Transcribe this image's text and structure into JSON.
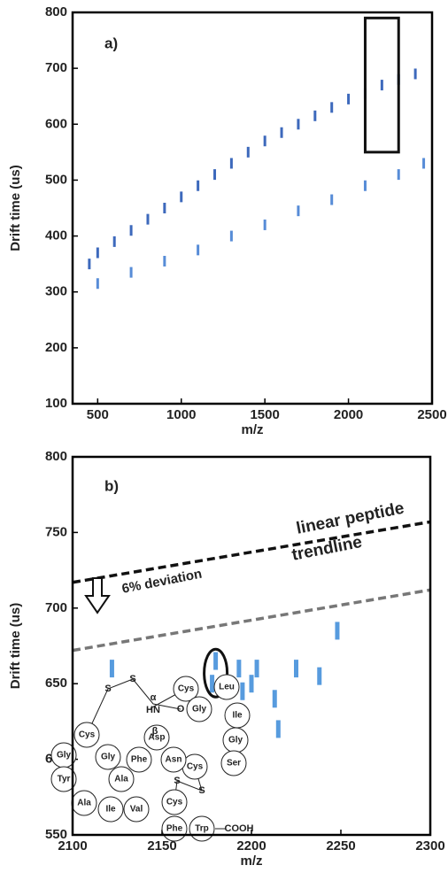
{
  "chart_data": [
    {
      "type": "scatter",
      "annotations": [
        "a)"
      ],
      "x_label": "m/z",
      "y_label": "Drift time (us)",
      "xlim": [
        350,
        2500
      ],
      "xticks": [
        500,
        1000,
        1500,
        2000,
        2500
      ],
      "ylim": [
        100,
        800
      ],
      "yticks": [
        100,
        200,
        300,
        400,
        500,
        600,
        700,
        800
      ],
      "series": [
        {
          "color": "#1b4fb0",
          "x": [
            450,
            500,
            600,
            700,
            800,
            900,
            1000,
            1100,
            1200,
            1300,
            1400,
            1500,
            1600,
            1700,
            1800,
            1900,
            2000,
            2100,
            2200,
            2300,
            2400
          ],
          "y": [
            350,
            370,
            390,
            410,
            430,
            450,
            470,
            490,
            510,
            530,
            550,
            570,
            585,
            600,
            615,
            630,
            645,
            655,
            670,
            680,
            690
          ]
        },
        {
          "color": "#3a78d0",
          "x": [
            500,
            700,
            900,
            1100,
            1300,
            1500,
            1700,
            1900,
            2100,
            2300,
            2450
          ],
          "y": [
            315,
            335,
            355,
            375,
            400,
            420,
            445,
            465,
            490,
            510,
            530
          ]
        }
      ],
      "highlight_box": {
        "x": [
          2100,
          2300
        ],
        "y": [
          550,
          790
        ]
      }
    },
    {
      "type": "scatter",
      "annotations": [
        "b)",
        "linear peptide",
        "trendline",
        "6% deviation"
      ],
      "x_label": "m/z",
      "y_label": "Drift time (us)",
      "xlim": [
        2100,
        2300
      ],
      "xticks": [
        2100,
        2150,
        2200,
        2250,
        2300
      ],
      "ylim": [
        550,
        800
      ],
      "yticks": [
        550,
        600,
        650,
        700,
        750,
        800
      ],
      "series": [
        {
          "color": "#3a8ad8",
          "x": [
            2122,
            2180,
            2178,
            2193,
            2195,
            2200,
            2203,
            2213,
            2215,
            2225,
            2238,
            2248
          ],
          "y": [
            660,
            665,
            650,
            660,
            645,
            650,
            660,
            640,
            620,
            660,
            655,
            685
          ]
        }
      ],
      "lines": [
        {
          "color": "#111111",
          "x": [
            2100,
            2300
          ],
          "y": [
            717,
            757
          ]
        },
        {
          "color": "#777777",
          "x": [
            2100,
            2300
          ],
          "y": [
            672,
            712
          ]
        }
      ],
      "highlight_ellipse": {
        "x": 2180,
        "y": 657
      },
      "structure_labels": [
        "Cys",
        "Leu",
        "Gly",
        "Ile",
        "Gly",
        "Ser",
        "Cys",
        "Asn",
        "Asp",
        "Phe",
        "Gly",
        "Ala",
        "Cys",
        "Gly",
        "Tyr",
        "Ala",
        "Ile",
        "Val",
        "Cys",
        "Phe",
        "Trp",
        "COOH",
        "S",
        "S",
        "α",
        "HN",
        "O",
        "β",
        "S",
        "S"
      ]
    }
  ]
}
